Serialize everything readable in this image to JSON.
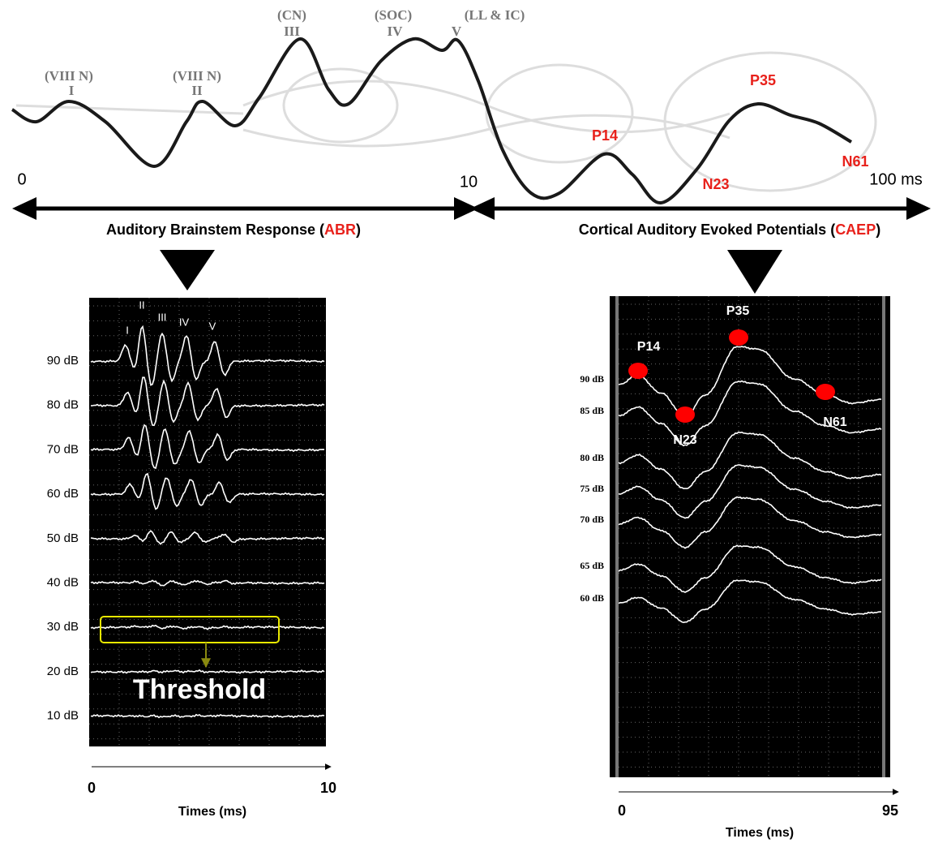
{
  "top": {
    "wave_labels": [
      {
        "nerve": "(VIII N)",
        "roman": "I"
      },
      {
        "nerve": "(VIII N)",
        "roman": "II"
      },
      {
        "nerve": "(CN)",
        "roman": "III"
      },
      {
        "nerve": "(SOC)",
        "roman": "IV"
      },
      {
        "nerve": "(LL & IC)",
        "roman": "V"
      }
    ],
    "peaks": [
      "P14",
      "N23",
      "P35",
      "N61"
    ],
    "axis": [
      "0",
      "10",
      "100 ms"
    ],
    "abr_caption": {
      "text": "Auditory  Brainstem  Response (",
      "abbr": "ABR",
      "close": ")"
    },
    "caep_caption": {
      "text": "Cortical Auditory  Evoked Potentials (",
      "abbr": "CAEP",
      "close": ")"
    }
  },
  "abr_panel": {
    "peaks": [
      "I",
      "II",
      "III",
      "IV",
      "V"
    ],
    "levels": [
      "90 dB",
      "80 dB",
      "70 dB",
      "60 dB",
      "50 dB",
      "40 dB",
      "30 dB",
      "20 dB",
      "10 dB"
    ],
    "threshold": "Threshold",
    "x_axis": {
      "start": "0",
      "end": "10",
      "title": "Times (ms)"
    }
  },
  "caep_panel": {
    "peaks": [
      "P14",
      "N23",
      "P35",
      "N61"
    ],
    "levels": [
      "90 dB",
      "85 dB",
      "80 dB",
      "75 dB",
      "70 dB",
      "65 dB",
      "60 dB"
    ],
    "x_axis": {
      "start": "0",
      "end": "95",
      "title": "Times (ms)"
    }
  }
}
